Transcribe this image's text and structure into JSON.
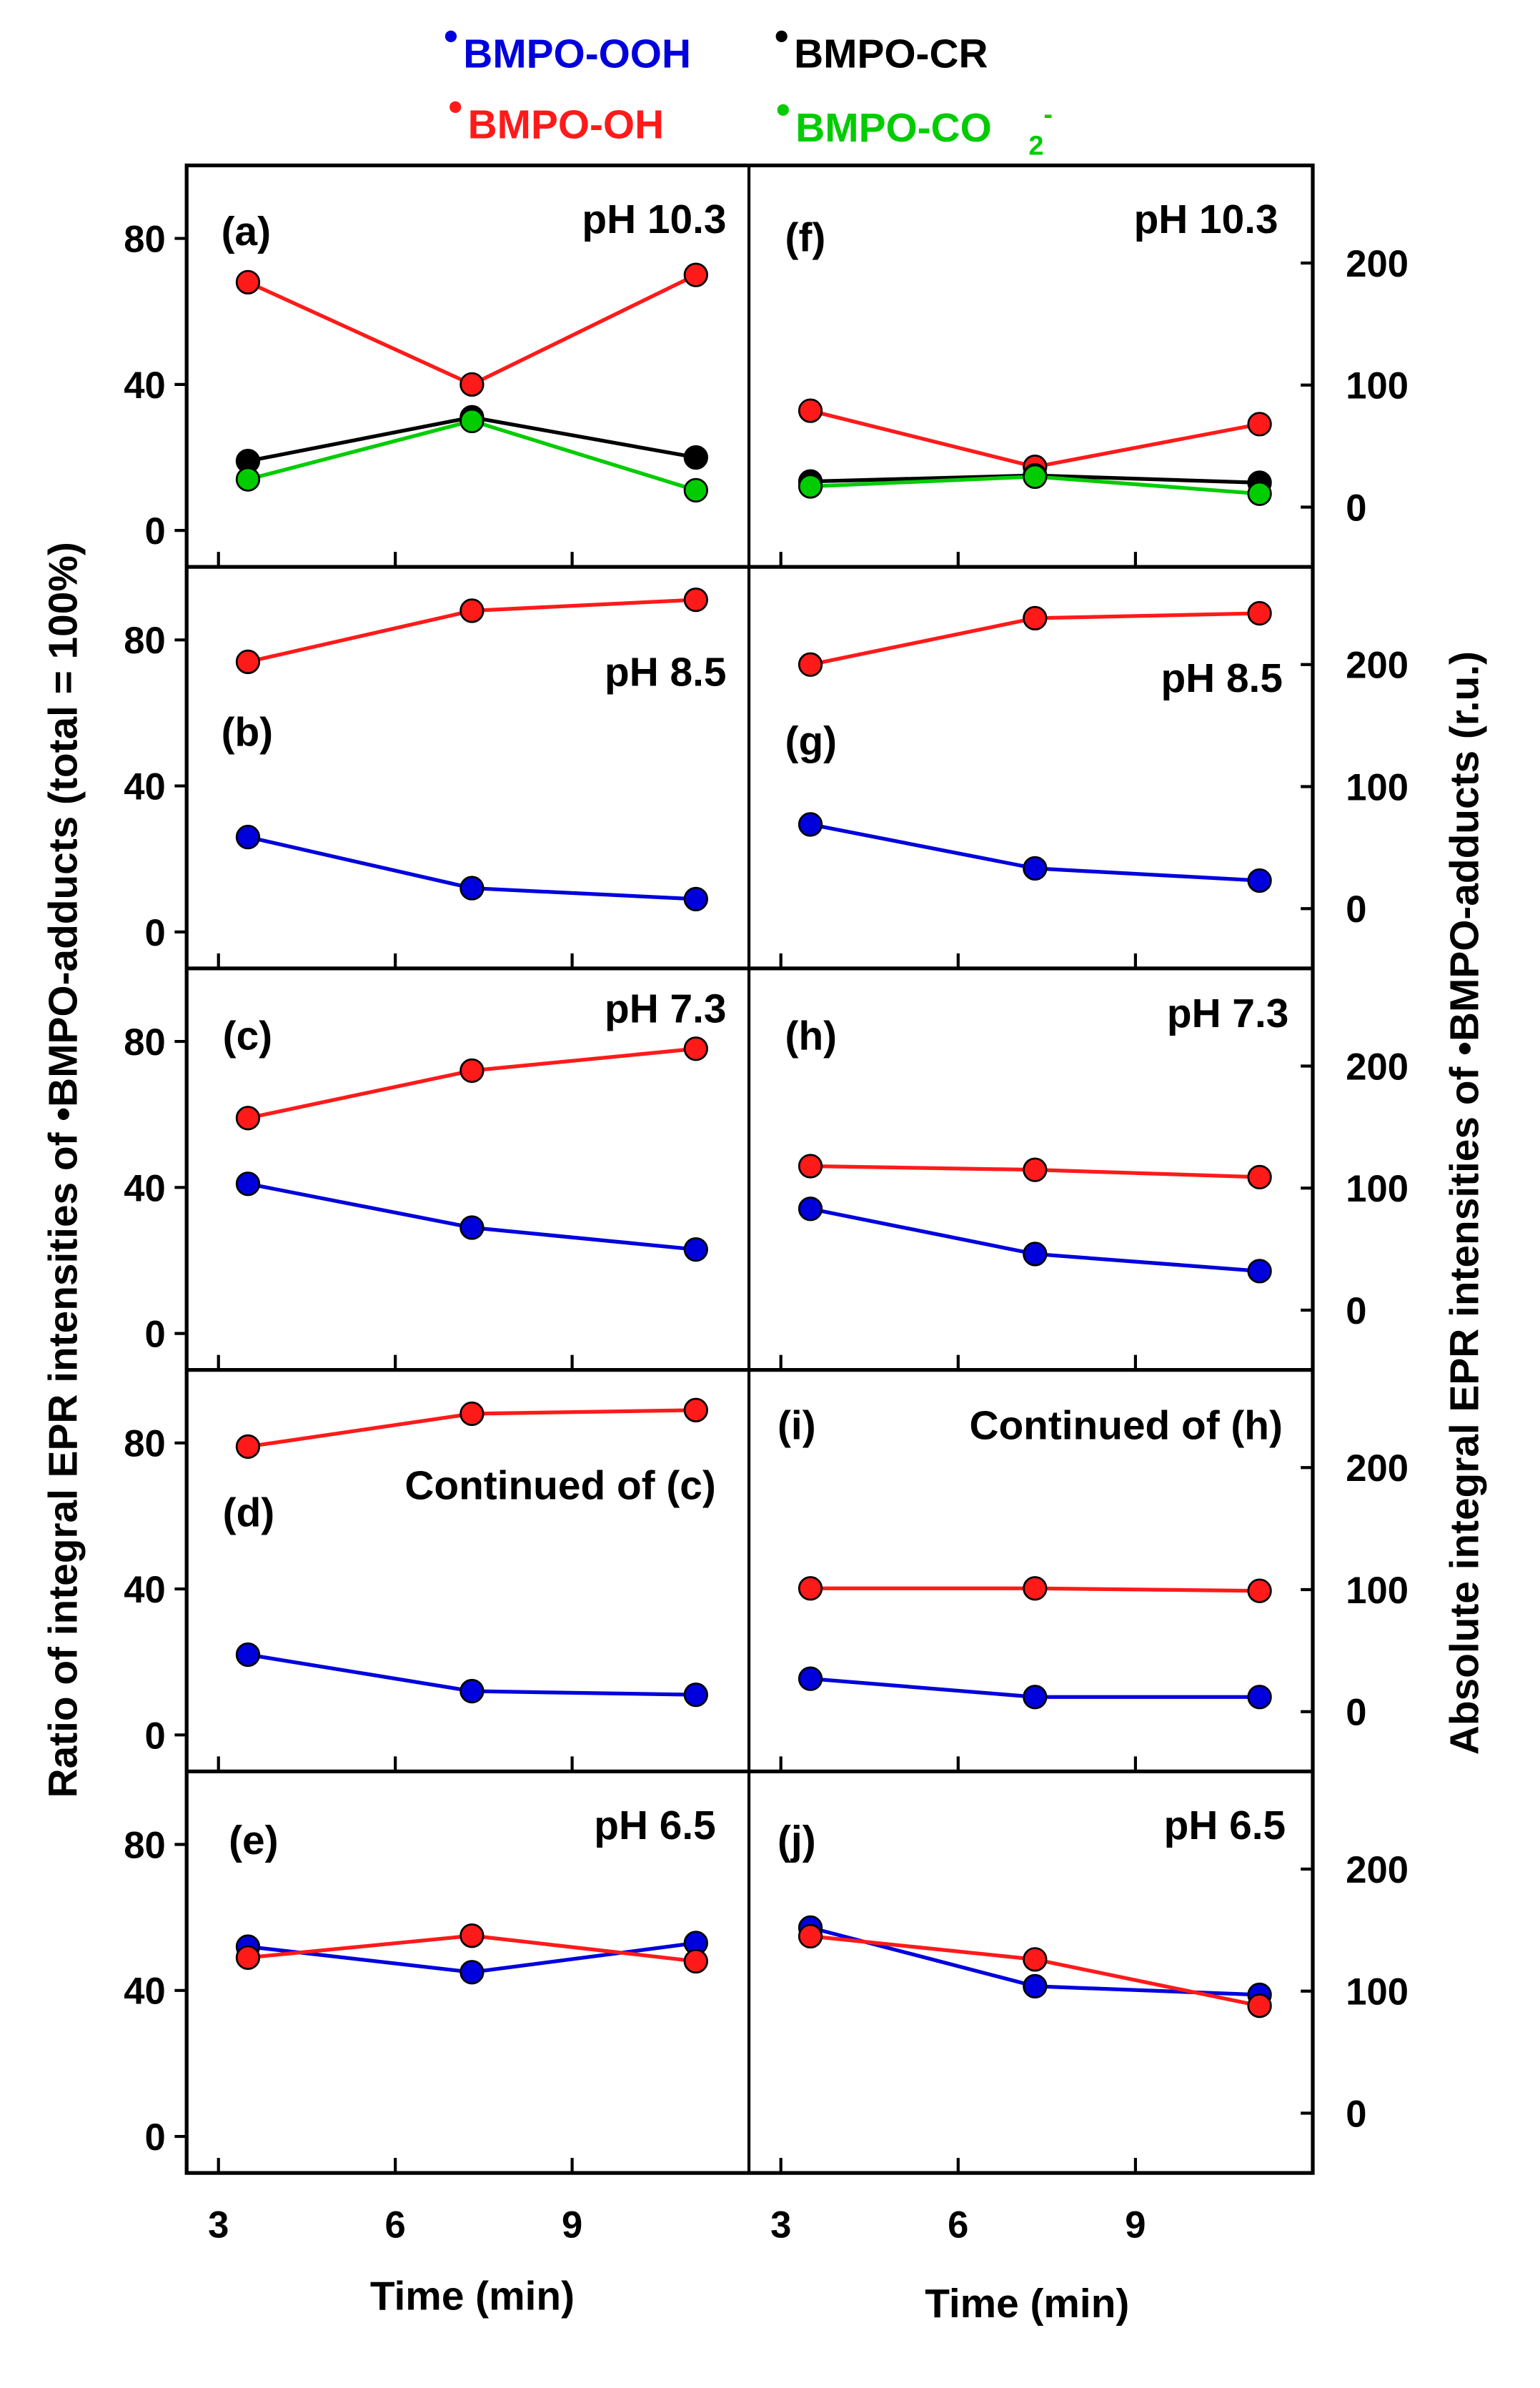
{
  "chart_data": {
    "type": "line",
    "legend": {
      "placement": "top",
      "entries": [
        {
          "name": "BMPO-OOH",
          "prefix": "•",
          "color": "#0000dd"
        },
        {
          "name": "BMPO-CR",
          "prefix": "•",
          "color": "#000000"
        },
        {
          "name": "BMPO-OH",
          "prefix": "•",
          "color": "#ff1a1a"
        },
        {
          "name": "BMPO-CO",
          "prefix": "•",
          "sub": "2",
          "sup": "-",
          "color": "#00cc00"
        }
      ]
    },
    "xlabel": "Time (min)",
    "ylabel_left": "Ratio of integral EPR intensities of •BMPO-adducts (total = 100%)",
    "ylabel_right": "Absolute integral EPR intensities of •BMPO-adducts (r.u.)",
    "xticks": [
      3,
      6,
      9
    ],
    "xlim": [
      2.46,
      12
    ],
    "left_yticks": [
      0,
      40,
      80
    ],
    "left_ylim": [
      -10,
      100
    ],
    "right_yticks": [
      0,
      100,
      200
    ],
    "right_ylim": [
      -49,
      280
    ],
    "x": [
      3.5,
      7.3,
      11.1
    ],
    "panels": [
      {
        "id": "(a)",
        "note": "pH 10.3",
        "axis": "left",
        "series": {
          "OH": [
            68,
            40,
            70
          ],
          "CR": [
            19,
            31,
            20
          ],
          "CO2": [
            14,
            30,
            11
          ]
        }
      },
      {
        "id": "(b)",
        "note": "pH 8.5",
        "axis": "left",
        "series": {
          "OH": [
            74,
            88,
            91
          ],
          "OOH": [
            26,
            12,
            9
          ]
        }
      },
      {
        "id": "(c)",
        "note": "pH 7.3",
        "axis": "left",
        "series": {
          "OH": [
            59,
            72,
            78
          ],
          "OOH": [
            41,
            29,
            23
          ]
        }
      },
      {
        "id": "(d)",
        "note": "Continued of (c)",
        "axis": "left",
        "series": {
          "OH": [
            79,
            88,
            89
          ],
          "OOH": [
            22,
            12,
            11
          ]
        }
      },
      {
        "id": "(e)",
        "note": "pH 6.5",
        "axis": "left",
        "series": {
          "OOH": [
            52,
            45,
            53
          ],
          "OH": [
            49,
            55,
            48
          ]
        }
      },
      {
        "id": "(f)",
        "note": "pH 10.3",
        "axis": "right",
        "series": {
          "OH": [
            79,
            33,
            68
          ],
          "CR": [
            21,
            26,
            20
          ],
          "CO2": [
            17,
            25,
            11
          ]
        }
      },
      {
        "id": "(g)",
        "note": "pH 8.5",
        "axis": "right",
        "series": {
          "OH": [
            200,
            238,
            242
          ],
          "OOH": [
            69,
            33,
            23
          ]
        }
      },
      {
        "id": "(h)",
        "note": "pH 7.3",
        "axis": "right",
        "series": {
          "OH": [
            118,
            115,
            109
          ],
          "OOH": [
            83,
            46,
            32
          ]
        }
      },
      {
        "id": "(i)",
        "note": "Continued of (h)",
        "axis": "right",
        "series": {
          "OH": [
            101,
            101,
            99
          ],
          "OOH": [
            27,
            12,
            12
          ]
        }
      },
      {
        "id": "(j)",
        "note": "pH 6.5",
        "axis": "right",
        "series": {
          "OOH": [
            152,
            104,
            97
          ],
          "OH": [
            145,
            126,
            88
          ]
        }
      }
    ],
    "colors": {
      "OOH": "#0000dd",
      "OH": "#ff1a1a",
      "CR": "#000000",
      "CO2": "#00cc00"
    }
  }
}
